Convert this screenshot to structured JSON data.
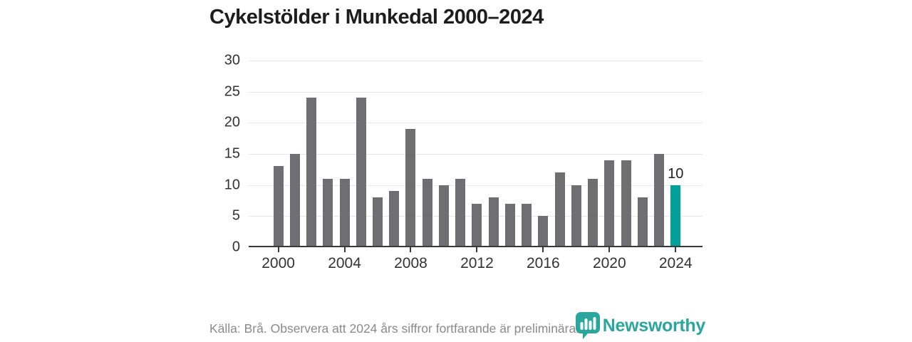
{
  "title": "Cykelstölder i Munkedal 2000–2024",
  "footer": {
    "source_note": "Källa: Brå. Observera att 2024 års siffror fortfarande är preliminära.",
    "brand": "Newsworthy"
  },
  "colors": {
    "bar": "#6e6e73",
    "highlight": "#00a19b",
    "brand": "#2aa79d",
    "grid": "#e7e7e7",
    "axis": "#3a3a3a",
    "tick_text": "#333333",
    "muted_text": "#8a8a8a"
  },
  "chart_data": {
    "type": "bar",
    "x": [
      2000,
      2001,
      2002,
      2003,
      2004,
      2005,
      2006,
      2007,
      2008,
      2009,
      2010,
      2011,
      2012,
      2013,
      2014,
      2015,
      2016,
      2017,
      2018,
      2019,
      2020,
      2021,
      2022,
      2023,
      2024
    ],
    "values": [
      13,
      15,
      24,
      11,
      11,
      24,
      8,
      9,
      19,
      11,
      10,
      11,
      7,
      8,
      7,
      7,
      5,
      12,
      10,
      11,
      14,
      14,
      8,
      15,
      10
    ],
    "title": "Cykelstölder i Munkedal 2000–2024",
    "xlabel": "",
    "ylabel": "",
    "ylim": [
      0,
      30
    ],
    "yticks": [
      0,
      5,
      10,
      15,
      20,
      25,
      30
    ],
    "xticks": [
      2000,
      2004,
      2008,
      2012,
      2016,
      2020,
      2024
    ],
    "grid": true,
    "legend": false,
    "highlight_year": 2024,
    "highlight_value_label": "10"
  }
}
